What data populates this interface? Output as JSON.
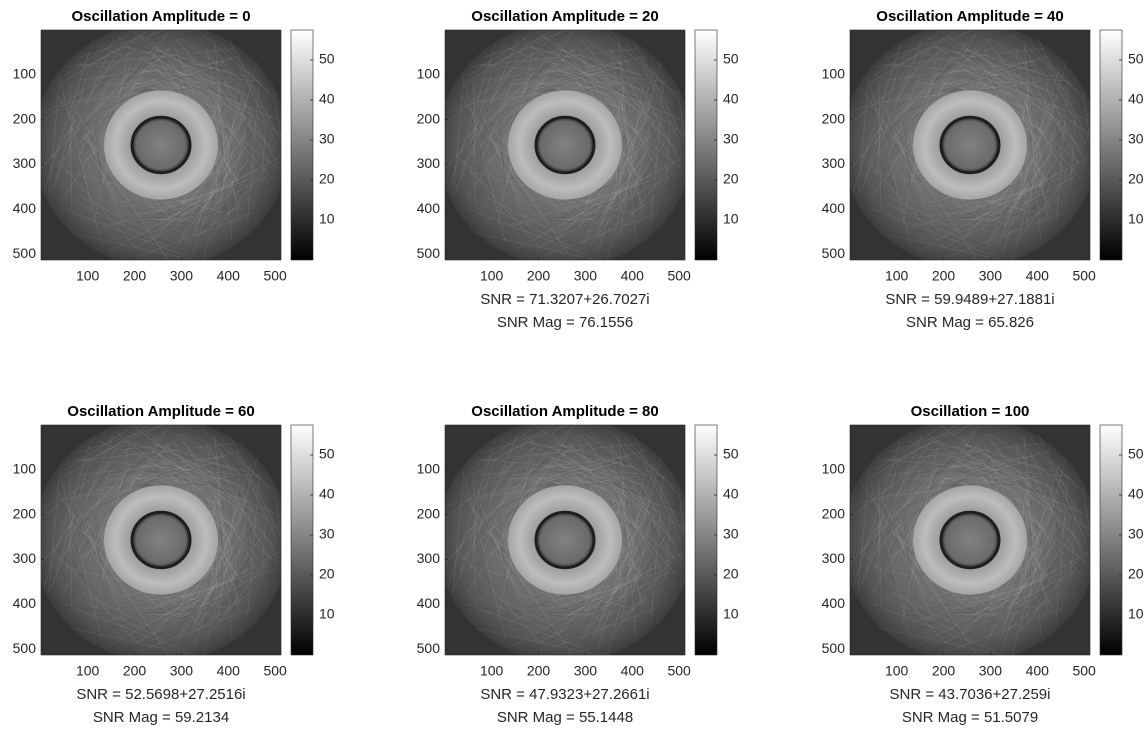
{
  "chart_data": [
    {
      "type": "image",
      "title": "Oscillation Amplitude = 0",
      "colormap": "gray",
      "yreverse": true,
      "xlim": [
        0.5,
        512.5
      ],
      "ylim": [
        0.5,
        512.5
      ],
      "xticks": [
        100,
        200,
        300,
        400,
        500
      ],
      "yticks": [
        100,
        200,
        300,
        400,
        500
      ],
      "colorbar": {
        "lim": [
          0,
          57.5
        ],
        "ticks": [
          10,
          20,
          30,
          40,
          50
        ]
      }
    },
    {
      "type": "image",
      "title": "Oscillation Amplitude = 20",
      "colormap": "gray",
      "yreverse": true,
      "xlim": [
        0.5,
        512.5
      ],
      "ylim": [
        0.5,
        512.5
      ],
      "xticks": [
        100,
        200,
        300,
        400,
        500
      ],
      "yticks": [
        100,
        200,
        300,
        400,
        500
      ],
      "colorbar": {
        "lim": [
          0,
          57.5
        ],
        "ticks": [
          10,
          20,
          30,
          40,
          50
        ]
      },
      "xlabel": [
        "SNR = 71.3207+26.7027i",
        "SNR Mag = 76.1556"
      ]
    },
    {
      "type": "image",
      "title": "Oscillation Amplitude = 40",
      "colormap": "gray",
      "yreverse": true,
      "xlim": [
        0.5,
        512.5
      ],
      "ylim": [
        0.5,
        512.5
      ],
      "xticks": [
        100,
        200,
        300,
        400,
        500
      ],
      "yticks": [
        100,
        200,
        300,
        400,
        500
      ],
      "colorbar": {
        "lim": [
          0,
          57.5
        ],
        "ticks": [
          10,
          20,
          30,
          40,
          50
        ]
      },
      "xlabel": [
        "SNR = 59.9489+27.1881i",
        "SNR Mag = 65.826"
      ]
    },
    {
      "type": "image",
      "title": "Oscillation Amplitude = 60",
      "colormap": "gray",
      "yreverse": true,
      "xlim": [
        0.5,
        512.5
      ],
      "ylim": [
        0.5,
        512.5
      ],
      "xticks": [
        100,
        200,
        300,
        400,
        500
      ],
      "yticks": [
        100,
        200,
        300,
        400,
        500
      ],
      "colorbar": {
        "lim": [
          0,
          57.5
        ],
        "ticks": [
          10,
          20,
          30,
          40,
          50
        ]
      },
      "xlabel": [
        "SNR = 52.5698+27.2516i",
        "SNR Mag = 59.2134"
      ]
    },
    {
      "type": "image",
      "title": "Oscillation Amplitude = 80",
      "colormap": "gray",
      "yreverse": true,
      "xlim": [
        0.5,
        512.5
      ],
      "ylim": [
        0.5,
        512.5
      ],
      "xticks": [
        100,
        200,
        300,
        400,
        500
      ],
      "yticks": [
        100,
        200,
        300,
        400,
        500
      ],
      "colorbar": {
        "lim": [
          0,
          57.5
        ],
        "ticks": [
          10,
          20,
          30,
          40,
          50
        ]
      },
      "xlabel": [
        "SNR = 47.9323+27.2661i",
        "SNR Mag = 55.1448"
      ]
    },
    {
      "type": "image",
      "title": "Oscillation = 100",
      "colormap": "gray",
      "yreverse": true,
      "xlim": [
        0.5,
        512.5
      ],
      "ylim": [
        0.5,
        512.5
      ],
      "xticks": [
        100,
        200,
        300,
        400,
        500
      ],
      "yticks": [
        100,
        200,
        300,
        400,
        500
      ],
      "colorbar": {
        "lim": [
          0,
          57.5
        ],
        "ticks": [
          10,
          20,
          30,
          40,
          50
        ]
      },
      "xlabel": [
        "SNR = 43.7036+27.259i",
        "SNR Mag = 51.5079"
      ]
    }
  ]
}
